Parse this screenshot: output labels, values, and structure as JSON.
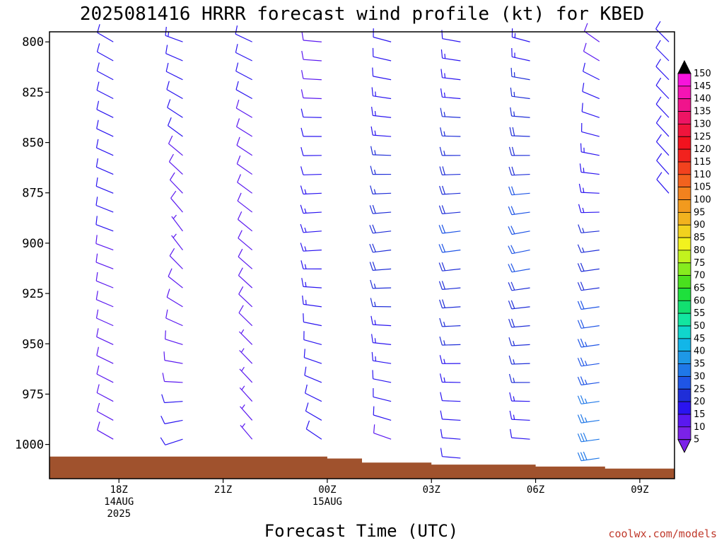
{
  "chart_data": {
    "type": "wind-barb-profile",
    "title": "2025081416 HRRR forecast wind profile (kt) for KBED",
    "xlabel": "Forecast Time (UTC)",
    "ylabel": "",
    "credit": "coolwx.com/models",
    "y_axis": {
      "unit": "hPa",
      "inverted": true,
      "range": [
        795,
        1017
      ],
      "ticks": [
        {
          "value": 800,
          "label": "800"
        },
        {
          "value": 825,
          "label": "825"
        },
        {
          "value": 850,
          "label": "850"
        },
        {
          "value": 875,
          "label": "875"
        },
        {
          "value": 900,
          "label": "900"
        },
        {
          "value": 925,
          "label": "925"
        },
        {
          "value": 950,
          "label": "950"
        },
        {
          "value": 975,
          "label": "975"
        },
        {
          "value": 1000,
          "label": "1000"
        }
      ]
    },
    "x_axis": {
      "unit": "UTC hour",
      "range": [
        "2025-08-14 16Z",
        "2025-08-15 10Z"
      ],
      "ticks": [
        {
          "value": "2025-08-14 18Z",
          "lines": [
            "18Z",
            "14AUG",
            "2025"
          ]
        },
        {
          "value": "2025-08-14 21Z",
          "lines": [
            "21Z"
          ]
        },
        {
          "value": "2025-08-15 00Z",
          "lines": [
            "00Z",
            "15AUG"
          ]
        },
        {
          "value": "2025-08-15 03Z",
          "lines": [
            "03Z"
          ]
        },
        {
          "value": "2025-08-15 06Z",
          "lines": [
            "06Z"
          ]
        },
        {
          "value": "2025-08-15 09Z",
          "lines": [
            "09Z"
          ]
        }
      ]
    },
    "surface_pressure": [
      {
        "time": "2025-08-14 16Z",
        "hpa": 1006
      },
      {
        "time": "2025-08-14 19Z",
        "hpa": 1006
      },
      {
        "time": "2025-08-14 22Z",
        "hpa": 1006
      },
      {
        "time": "2025-08-15 00Z",
        "hpa": 1007
      },
      {
        "time": "2025-08-15 01Z",
        "hpa": 1009
      },
      {
        "time": "2025-08-15 03Z",
        "hpa": 1010
      },
      {
        "time": "2025-08-15 06Z",
        "hpa": 1011
      },
      {
        "time": "2025-08-15 08Z",
        "hpa": 1012
      }
    ],
    "surface_color": "#a0522d",
    "profiles": [
      {
        "time": "2025-08-14 18Z",
        "hours": 2,
        "top": {
          "dir": 300,
          "spd": 10
        },
        "mid": {
          "dir": 290,
          "spd": 10
        },
        "low": {
          "dir": 300,
          "spd": 9
        },
        "bottom_hpa": 1000
      },
      {
        "time": "2025-08-14 20Z",
        "hours": 4,
        "top": {
          "dir": 290,
          "spd": 13
        },
        "mid": {
          "dir": 325,
          "spd": 7
        },
        "low": {
          "dir": 250,
          "spd": 11
        },
        "bottom_hpa": 1002
      },
      {
        "time": "2025-08-14 22Z",
        "hours": 6,
        "top": {
          "dir": 295,
          "spd": 11
        },
        "mid": {
          "dir": 310,
          "spd": 8
        },
        "low": {
          "dir": 320,
          "spd": 7
        },
        "bottom_hpa": 1005
      },
      {
        "time": "2025-08-15 00Z",
        "hours": 8,
        "top": {
          "dir": 275,
          "spd": 8
        },
        "mid": {
          "dir": 265,
          "spd": 14
        },
        "low": {
          "dir": 305,
          "spd": 10
        },
        "bottom_hpa": 1000
      },
      {
        "time": "2025-08-15 02Z",
        "hours": 10,
        "top": {
          "dir": 285,
          "spd": 10
        },
        "mid": {
          "dir": 262,
          "spd": 19
        },
        "low": {
          "dir": 290,
          "spd": 9
        },
        "bottom_hpa": 1000
      },
      {
        "time": "2025-08-15 04Z",
        "hours": 12,
        "top": {
          "dir": 280,
          "spd": 12
        },
        "mid": {
          "dir": 262,
          "spd": 21
        },
        "low": {
          "dir": 275,
          "spd": 10
        },
        "bottom_hpa": 1007
      },
      {
        "time": "2025-08-15 06Z",
        "hours": 14,
        "top": {
          "dir": 285,
          "spd": 14
        },
        "mid": {
          "dir": 258,
          "spd": 22
        },
        "low": {
          "dir": 275,
          "spd": 12
        },
        "bottom_hpa": 1005
      },
      {
        "time": "2025-08-15 08Z",
        "hours": 16,
        "top": {
          "dir": 305,
          "spd": 9
        },
        "mid": {
          "dir": 262,
          "spd": 16
        },
        "low": {
          "dir": 262,
          "spd": 29
        },
        "bottom_hpa": 1008
      },
      {
        "time": "2025-08-15 10Z",
        "hours": 18,
        "top": {
          "dir": 315,
          "spd": 12
        },
        "mid": {
          "dir": 320,
          "spd": 10
        },
        "low": {
          "dir": 320,
          "spd": 10
        },
        "bottom_hpa": 880
      }
    ],
    "colorbar": {
      "label_values": [
        5,
        10,
        15,
        20,
        25,
        30,
        35,
        40,
        45,
        50,
        55,
        60,
        65,
        70,
        75,
        80,
        85,
        90,
        95,
        100,
        105,
        110,
        115,
        120,
        125,
        130,
        135,
        140,
        145,
        150
      ],
      "colors": [
        "#7b22e8",
        "#5a18f0",
        "#2a14f0",
        "#1f2ed8",
        "#1f55e6",
        "#1f78e8",
        "#1e98e6",
        "#12b6e8",
        "#10d6cc",
        "#12e6a0",
        "#12e070",
        "#1ee03c",
        "#4ae01e",
        "#86ec1e",
        "#c2f21e",
        "#f2f21e",
        "#f2d21e",
        "#f2b21e",
        "#f29a1e",
        "#f2821e",
        "#f2621e",
        "#f2421e",
        "#f2221e",
        "#f2121e",
        "#f0143c",
        "#ee1464",
        "#f0148c",
        "#f414b4",
        "#f614dc",
        "#000000"
      ]
    }
  }
}
